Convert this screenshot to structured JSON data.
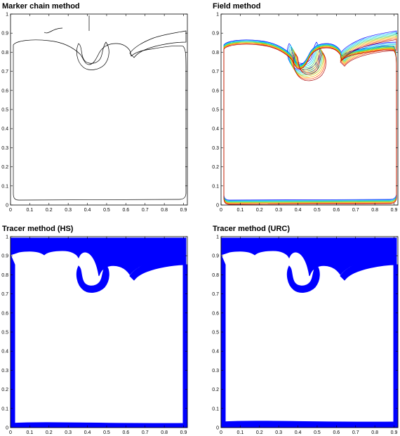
{
  "chart_data": [
    {
      "type": "contour",
      "title": "Marker chain method",
      "xlim": [
        0,
        0.92
      ],
      "ylim": [
        0,
        1
      ],
      "x_ticks": [
        0,
        0.1,
        0.2,
        0.3,
        0.4,
        0.5,
        0.6,
        0.7,
        0.8,
        0.9
      ],
      "y_ticks": [
        0,
        0.1,
        0.2,
        0.3,
        0.4,
        0.5,
        0.6,
        0.7,
        0.8,
        0.9,
        1
      ],
      "x_tick_labels": [
        "0",
        "0.1",
        "0.2",
        "0.3",
        "0.4",
        "0.5",
        "0.6",
        "0.7",
        "0.8",
        "0.9"
      ],
      "y_tick_labels": [
        "0",
        "0.1",
        "0.2",
        "0.3",
        "0.4",
        "0.5",
        "0.6",
        "0.7",
        "0.8",
        "0.9",
        "1"
      ],
      "style": "line",
      "color": "#000000"
    },
    {
      "type": "contour",
      "title": "Field method",
      "xlim": [
        0,
        0.92
      ],
      "ylim": [
        0,
        1
      ],
      "x_ticks": [
        0,
        0.1,
        0.2,
        0.3,
        0.4,
        0.5,
        0.6,
        0.7,
        0.8,
        0.9
      ],
      "y_ticks": [
        0,
        0.1,
        0.2,
        0.3,
        0.4,
        0.5,
        0.6,
        0.7,
        0.8,
        0.9,
        1
      ],
      "x_tick_labels": [
        "0",
        "0.1",
        "0.2",
        "0.3",
        "0.4",
        "0.5",
        "0.6",
        "0.7",
        "0.8",
        "0.9"
      ],
      "y_tick_labels": [
        "0",
        "0.1",
        "0.2",
        "0.3",
        "0.4",
        "0.5",
        "0.6",
        "0.7",
        "0.8",
        "0.9",
        "1"
      ],
      "style": "multicontour",
      "colors": [
        "#0000ff",
        "#00aaff",
        "#00dddd",
        "#33cc66",
        "#aacc00",
        "#ffaa00",
        "#ff4400",
        "#aa0000"
      ]
    },
    {
      "type": "scatter",
      "title": "Tracer method (HS)",
      "xlim": [
        0,
        0.92
      ],
      "ylim": [
        0,
        1
      ],
      "x_ticks": [
        0,
        0.1,
        0.2,
        0.3,
        0.4,
        0.5,
        0.6,
        0.7,
        0.8,
        0.9
      ],
      "y_ticks": [
        0,
        0.1,
        0.2,
        0.3,
        0.4,
        0.5,
        0.6,
        0.7,
        0.8,
        0.9,
        1
      ],
      "x_tick_labels": [
        "0",
        "0.1",
        "0.2",
        "0.3",
        "0.4",
        "0.5",
        "0.6",
        "0.7",
        "0.8",
        "0.9"
      ],
      "y_tick_labels": [
        "0",
        "0.1",
        "0.2",
        "0.3",
        "0.4",
        "0.5",
        "0.6",
        "0.7",
        "0.8",
        "0.9",
        "1"
      ],
      "style": "filled",
      "color": "#0000ff"
    },
    {
      "type": "scatter",
      "title": "Tracer method (URC)",
      "xlim": [
        0,
        0.92
      ],
      "ylim": [
        0,
        1
      ],
      "x_ticks": [
        0,
        0.1,
        0.2,
        0.3,
        0.4,
        0.5,
        0.6,
        0.7,
        0.8,
        0.9
      ],
      "y_ticks": [
        0,
        0.1,
        0.2,
        0.3,
        0.4,
        0.5,
        0.6,
        0.7,
        0.8,
        0.9,
        1
      ],
      "x_tick_labels": [
        "0",
        "0.1",
        "0.2",
        "0.3",
        "0.4",
        "0.5",
        "0.6",
        "0.7",
        "0.8",
        "0.9"
      ],
      "y_tick_labels": [
        "0",
        "0.1",
        "0.2",
        "0.3",
        "0.4",
        "0.5",
        "0.6",
        "0.7",
        "0.8",
        "0.9",
        "1"
      ],
      "style": "filled",
      "color": "#0000ff"
    }
  ]
}
